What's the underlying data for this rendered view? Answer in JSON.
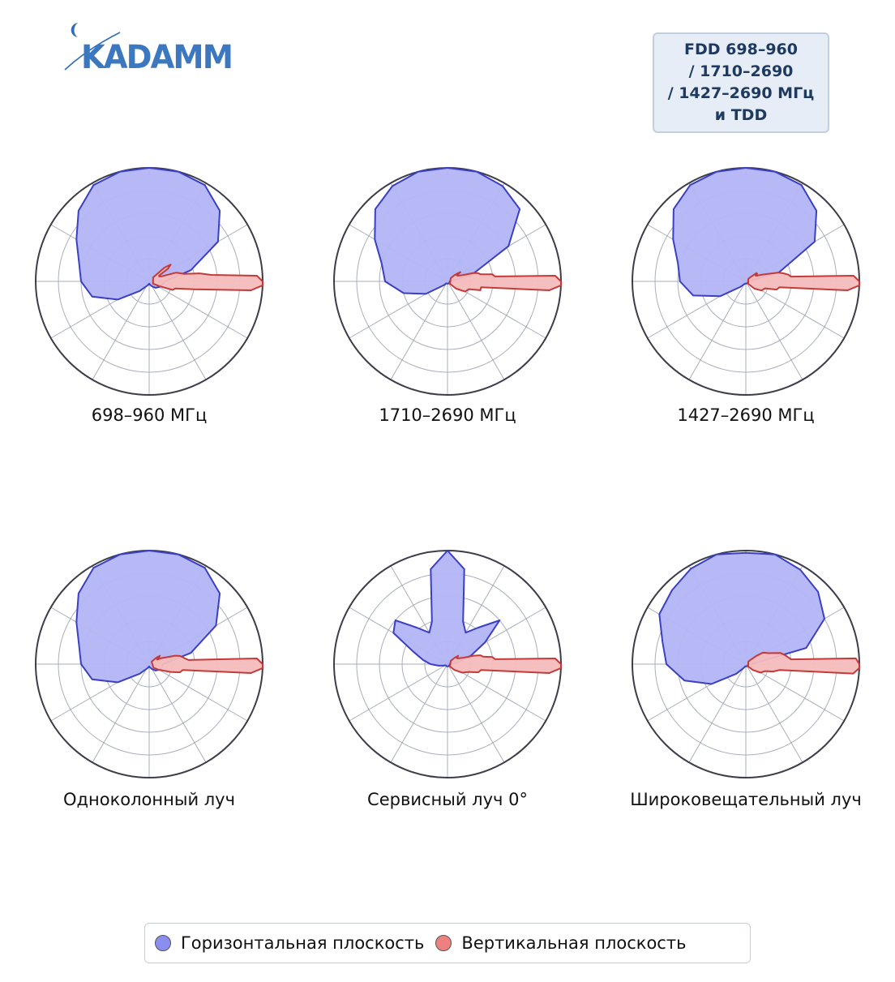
{
  "logo": {
    "text": "KADAMM"
  },
  "info_box": {
    "lines": [
      "FDD 698–960",
      "/ 1710–2690",
      "/ 1427–2690 МГц",
      "и TDD"
    ]
  },
  "legend": {
    "items": [
      {
        "label": "Горизонтальная плоскость",
        "color": "#8b8ef0"
      },
      {
        "label": "Вертикальная плоскость",
        "color": "#ee8080"
      }
    ]
  },
  "colors": {
    "horizontal_fill": "#b3b5f7",
    "horizontal_stroke": "#3a3fc4",
    "vertical_fill": "#f6bcbc",
    "vertical_stroke": "#c43a3a",
    "grid": "#a9aebb",
    "outer_ring": "#3d3d4a"
  },
  "chart_data": [
    {
      "type": "polar",
      "title": "698–960 МГц",
      "grid": true,
      "series": [
        {
          "plane": "horizontal",
          "theta": [
            0,
            15,
            30,
            45,
            60,
            75,
            90,
            105,
            120,
            135,
            150,
            165,
            180,
            195,
            210,
            225,
            240,
            255,
            270,
            285,
            300,
            315,
            330,
            345
          ],
          "r": [
            0.14,
            0.38,
            0.7,
            0.88,
            0.98,
            1.0,
            1.0,
            1.0,
            0.98,
            0.88,
            0.74,
            0.64,
            0.6,
            0.52,
            0.32,
            0.12,
            0.05,
            0.03,
            0.02,
            0.03,
            0.05,
            0.08,
            0.1,
            0.12
          ]
        },
        {
          "plane": "vertical",
          "theta": [
            0,
            3,
            6,
            9,
            12,
            15,
            18,
            22,
            26,
            30,
            34,
            38,
            42,
            45,
            330,
            335,
            340,
            345,
            350,
            355,
            358
          ],
          "r": [
            1.0,
            0.95,
            0.55,
            0.45,
            0.32,
            0.28,
            0.25,
            0.12,
            0.1,
            0.1,
            0.2,
            0.24,
            0.18,
            0.05,
            0.04,
            0.1,
            0.22,
            0.24,
            0.4,
            0.9,
            1.0
          ]
        }
      ]
    },
    {
      "type": "polar",
      "title": "1710–2690 МГц",
      "grid": true,
      "series": [
        {
          "plane": "horizontal",
          "theta": [
            0,
            15,
            30,
            45,
            60,
            75,
            90,
            105,
            120,
            135,
            150,
            165,
            180,
            195,
            210,
            225,
            240,
            255,
            270,
            285,
            300,
            315,
            330,
            345
          ],
          "r": [
            0.02,
            0.22,
            0.62,
            0.9,
            0.97,
            1.0,
            1.0,
            1.0,
            0.97,
            0.9,
            0.74,
            0.6,
            0.55,
            0.4,
            0.22,
            0.05,
            0.02,
            0.02,
            0.02,
            0.02,
            0.02,
            0.02,
            0.02,
            0.02
          ]
        },
        {
          "plane": "vertical",
          "theta": [
            0,
            3,
            6,
            9,
            12,
            15,
            18,
            22,
            26,
            30,
            34,
            36,
            38,
            42,
            45,
            315,
            320,
            330,
            340,
            345,
            350,
            355,
            358
          ],
          "r": [
            1.0,
            0.95,
            0.42,
            0.4,
            0.3,
            0.28,
            0.24,
            0.15,
            0.12,
            0.1,
            0.1,
            0.14,
            0.12,
            0.08,
            0.04,
            0.03,
            0.1,
            0.18,
            0.2,
            0.3,
            0.3,
            0.9,
            1.0
          ]
        }
      ]
    },
    {
      "type": "polar",
      "title": "1427–2690 МГц",
      "grid": true,
      "series": [
        {
          "plane": "horizontal",
          "theta": [
            0,
            15,
            30,
            45,
            60,
            75,
            90,
            105,
            120,
            135,
            150,
            165,
            180,
            195,
            210,
            225,
            240,
            255,
            270,
            285,
            300,
            315,
            330,
            345
          ],
          "r": [
            0.02,
            0.3,
            0.7,
            0.88,
            0.98,
            1.0,
            1.0,
            1.0,
            0.98,
            0.9,
            0.74,
            0.62,
            0.58,
            0.48,
            0.26,
            0.07,
            0.03,
            0.02,
            0.02,
            0.02,
            0.02,
            0.02,
            0.02,
            0.02
          ]
        },
        {
          "plane": "vertical",
          "theta": [
            0,
            3,
            6,
            9,
            12,
            15,
            18,
            22,
            26,
            30,
            34,
            38,
            42,
            45,
            315,
            320,
            330,
            340,
            345,
            350,
            355,
            358
          ],
          "r": [
            1.0,
            0.95,
            0.4,
            0.38,
            0.34,
            0.3,
            0.22,
            0.16,
            0.12,
            0.1,
            0.12,
            0.12,
            0.06,
            0.03,
            0.03,
            0.1,
            0.16,
            0.18,
            0.28,
            0.3,
            0.9,
            1.0
          ]
        }
      ]
    },
    {
      "type": "polar",
      "title": "Одноколонный луч",
      "grid": true,
      "series": [
        {
          "plane": "horizontal",
          "theta": [
            0,
            15,
            30,
            45,
            60,
            75,
            90,
            105,
            120,
            135,
            150,
            165,
            180,
            195,
            210,
            225,
            240,
            255,
            270,
            285,
            300,
            315,
            330,
            345
          ],
          "r": [
            0.12,
            0.38,
            0.68,
            0.88,
            0.98,
            1.0,
            1.0,
            1.0,
            0.98,
            0.88,
            0.74,
            0.64,
            0.6,
            0.52,
            0.32,
            0.12,
            0.05,
            0.03,
            0.02,
            0.03,
            0.05,
            0.08,
            0.1,
            0.12
          ]
        },
        {
          "plane": "vertical",
          "theta": [
            0,
            3,
            6,
            9,
            12,
            15,
            18,
            22,
            26,
            30,
            34,
            38,
            42,
            45,
            320,
            330,
            340,
            345,
            350,
            355,
            358
          ],
          "r": [
            1.0,
            0.95,
            0.35,
            0.32,
            0.3,
            0.28,
            0.24,
            0.16,
            0.12,
            0.08,
            0.1,
            0.12,
            0.08,
            0.03,
            0.05,
            0.1,
            0.2,
            0.28,
            0.3,
            0.9,
            1.0
          ]
        }
      ]
    },
    {
      "type": "polar",
      "title": "Сервисный луч 0°",
      "grid": true,
      "series": [
        {
          "plane": "horizontal",
          "theta": [
            0,
            10,
            20,
            30,
            40,
            50,
            60,
            70,
            80,
            90,
            100,
            110,
            120,
            130,
            140,
            150,
            160,
            170,
            180,
            190,
            200,
            210,
            220,
            230,
            240,
            250,
            260,
            270,
            280,
            290,
            300,
            310,
            320,
            330,
            340,
            350
          ],
          "r": [
            0.02,
            0.1,
            0.22,
            0.38,
            0.6,
            0.42,
            0.32,
            0.4,
            0.85,
            1.0,
            0.85,
            0.4,
            0.32,
            0.42,
            0.6,
            0.55,
            0.32,
            0.22,
            0.15,
            0.08,
            0.04,
            0.02,
            0.02,
            0.02,
            0.02,
            0.02,
            0.02,
            0.02,
            0.02,
            0.02,
            0.02,
            0.02,
            0.02,
            0.02,
            0.02,
            0.02
          ]
        },
        {
          "plane": "vertical",
          "theta": [
            0,
            3,
            6,
            9,
            12,
            15,
            18,
            22,
            26,
            30,
            34,
            38,
            42,
            45,
            315,
            320,
            330,
            340,
            345,
            350,
            355,
            358
          ],
          "r": [
            1.0,
            0.95,
            0.42,
            0.4,
            0.32,
            0.3,
            0.24,
            0.15,
            0.12,
            0.1,
            0.1,
            0.12,
            0.08,
            0.04,
            0.03,
            0.08,
            0.15,
            0.2,
            0.28,
            0.3,
            0.9,
            1.0
          ]
        }
      ]
    },
    {
      "type": "polar",
      "title": "Широковещательный луч",
      "grid": true,
      "series": [
        {
          "plane": "horizontal",
          "theta": [
            0,
            15,
            30,
            45,
            60,
            75,
            90,
            105,
            120,
            135,
            150,
            165,
            180,
            195,
            210,
            225,
            240,
            255,
            270,
            285,
            300,
            315,
            330,
            345
          ],
          "r": [
            0.05,
            0.55,
            0.8,
            0.9,
            0.96,
            1.0,
            0.98,
            1.0,
            0.97,
            0.92,
            0.88,
            0.76,
            0.7,
            0.56,
            0.35,
            0.12,
            0.04,
            0.02,
            0.02,
            0.02,
            0.02,
            0.02,
            0.02,
            0.02
          ]
        },
        {
          "plane": "vertical",
          "theta": [
            0,
            3,
            6,
            9,
            12,
            15,
            18,
            22,
            26,
            30,
            34,
            38,
            42,
            45,
            315,
            320,
            330,
            340,
            345,
            350,
            355,
            358
          ],
          "r": [
            1.0,
            0.97,
            0.4,
            0.38,
            0.36,
            0.34,
            0.32,
            0.26,
            0.22,
            0.2,
            0.18,
            0.12,
            0.06,
            0.03,
            0.03,
            0.08,
            0.15,
            0.18,
            0.25,
            0.3,
            0.95,
            1.0
          ]
        }
      ]
    }
  ]
}
